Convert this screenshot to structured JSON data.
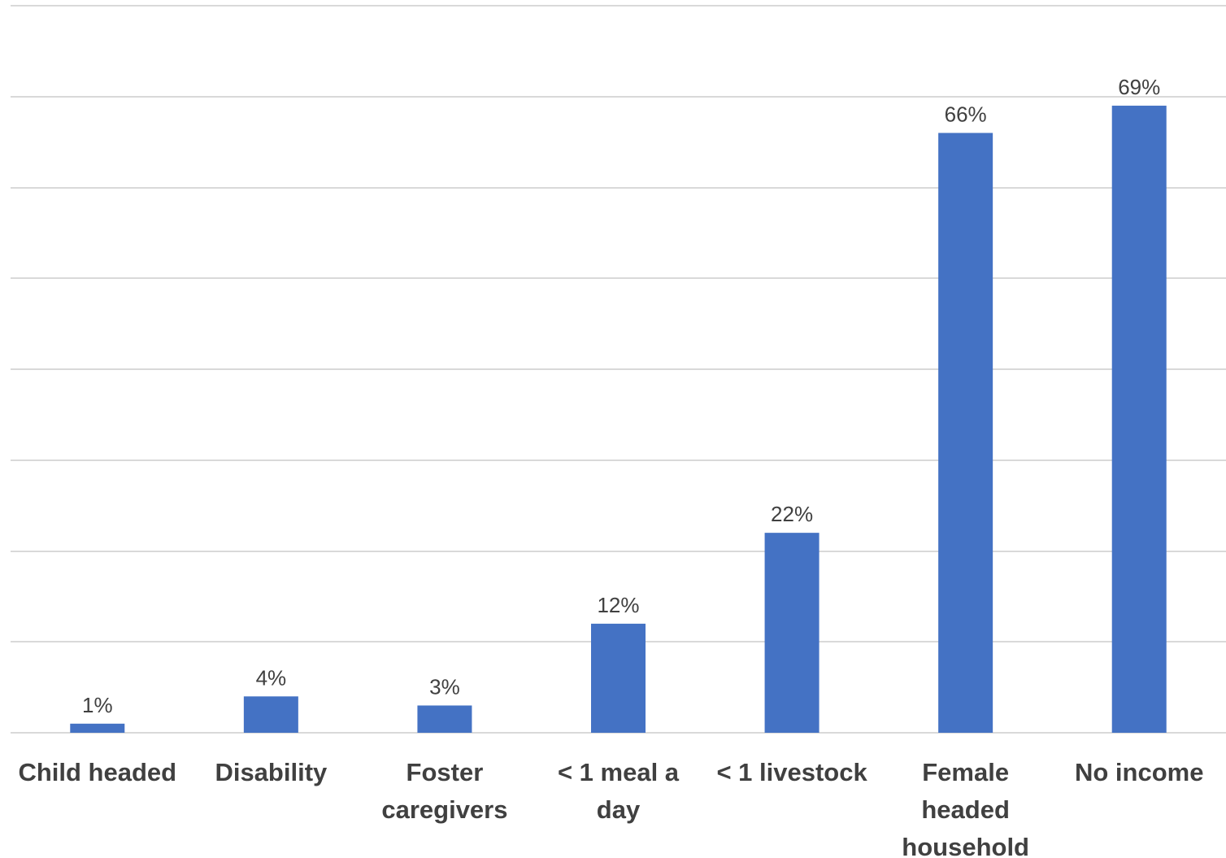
{
  "chart_data": {
    "type": "bar",
    "title": "",
    "xlabel": "",
    "ylabel": "",
    "categories": [
      "Child headed",
      "Disability",
      "Foster caregivers",
      "< 1 meal a day",
      "< 1 livestock",
      "Female headed household",
      "No income"
    ],
    "category_label_lines": [
      [
        "Child headed"
      ],
      [
        "Disability"
      ],
      [
        "Foster",
        "caregivers"
      ],
      [
        "< 1 meal a",
        "day"
      ],
      [
        "< 1 livestock"
      ],
      [
        "Female",
        "headed",
        "household"
      ],
      [
        "No income"
      ]
    ],
    "values": [
      1,
      4,
      3,
      12,
      22,
      66,
      69
    ],
    "data_labels": [
      "1%",
      "4%",
      "3%",
      "12%",
      "22%",
      "66%",
      "69%"
    ],
    "ylim": [
      0,
      80
    ],
    "gridline_step": 10,
    "grid": true,
    "legend": "none",
    "bar_color": "#4472c4"
  }
}
